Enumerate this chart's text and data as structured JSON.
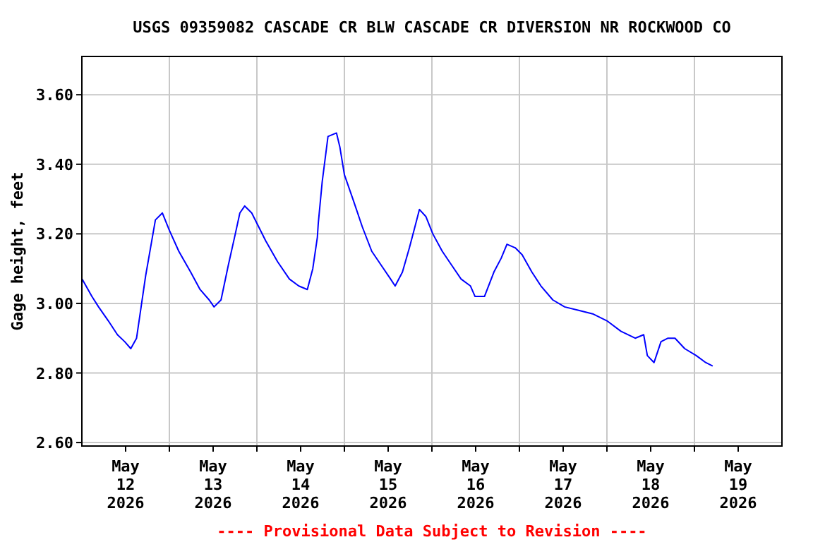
{
  "chart_data": {
    "type": "line",
    "title": "USGS 09359082 CASCADE CR BLW CASCADE CR DIVERSION NR ROCKWOOD CO",
    "ylabel": "Gage height, feet",
    "annotations": [
      "---- Provisional Data Subject to Revision ----"
    ],
    "x": [
      "2026-05-12T00:05",
      "2026-05-12T02:45",
      "2026-05-12T04:35",
      "2026-05-12T07:15",
      "2026-05-12T09:45",
      "2026-05-12T11:45",
      "2026-05-12T13:25",
      "2026-05-12T15:00",
      "2026-05-12T16:15",
      "2026-05-12T17:30",
      "2026-05-12T18:50",
      "2026-05-12T20:10",
      "2026-05-12T22:05",
      "2026-05-13T00:00",
      "2026-05-13T02:35",
      "2026-05-13T05:50",
      "2026-05-13T08:25",
      "2026-05-13T10:55",
      "2026-05-13T12:15",
      "2026-05-13T14:10",
      "2026-05-13T16:10",
      "2026-05-13T18:05",
      "2026-05-13T19:20",
      "2026-05-13T20:40",
      "2026-05-13T22:35",
      "2026-05-14T00:30",
      "2026-05-14T02:25",
      "2026-05-14T05:40",
      "2026-05-14T08:55",
      "2026-05-14T11:30",
      "2026-05-14T13:50",
      "2026-05-14T15:20",
      "2026-05-14T16:35",
      "2026-05-14T16:50",
      "2026-05-14T17:55",
      "2026-05-14T19:30",
      "2026-05-14T21:50",
      "2026-05-14T22:45",
      "2026-05-15T00:00",
      "2026-05-15T02:20",
      "2026-05-15T04:55",
      "2026-05-15T07:30",
      "2026-05-15T10:05",
      "2026-05-15T12:40",
      "2026-05-15T13:55",
      "2026-05-15T15:55",
      "2026-05-15T17:50",
      "2026-05-15T19:05",
      "2026-05-15T20:35",
      "2026-05-15T22:20",
      "2026-05-16T00:15",
      "2026-05-16T02:50",
      "2026-05-16T05:25",
      "2026-05-16T08:00",
      "2026-05-16T10:35",
      "2026-05-16T11:50",
      "2026-05-16T14:25",
      "2026-05-16T17:00",
      "2026-05-16T19:00",
      "2026-05-16T20:35",
      "2026-05-16T22:50",
      "2026-05-17T00:45",
      "2026-05-17T03:25",
      "2026-05-17T05:55",
      "2026-05-17T09:10",
      "2026-05-17T12:25",
      "2026-05-17T16:15",
      "2026-05-17T20:05",
      "2026-05-18T00:00",
      "2026-05-18T03:50",
      "2026-05-18T07:45",
      "2026-05-18T10:05",
      "2026-05-18T11:05",
      "2026-05-18T12:55",
      "2026-05-18T14:50",
      "2026-05-18T16:45",
      "2026-05-18T18:40",
      "2026-05-18T21:20",
      "2026-05-19T00:30",
      "2026-05-19T03:05",
      "2026-05-19T05:00"
    ],
    "series": [
      {
        "color": "#0000ff",
        "values": [
          3.07,
          3.02,
          2.99,
          2.95,
          2.91,
          2.89,
          2.87,
          2.9,
          2.99,
          3.08,
          3.16,
          3.24,
          3.26,
          3.21,
          3.15,
          3.09,
          3.04,
          3.01,
          2.99,
          3.01,
          3.11,
          3.2,
          3.26,
          3.28,
          3.26,
          3.22,
          3.18,
          3.12,
          3.07,
          3.05,
          3.04,
          3.1,
          3.19,
          3.23,
          3.35,
          3.48,
          3.49,
          3.45,
          3.37,
          3.3,
          3.22,
          3.15,
          3.11,
          3.07,
          3.05,
          3.09,
          3.16,
          3.21,
          3.27,
          3.25,
          3.2,
          3.15,
          3.11,
          3.07,
          3.05,
          3.02,
          3.02,
          3.09,
          3.13,
          3.17,
          3.16,
          3.14,
          3.09,
          3.05,
          3.01,
          2.99,
          2.98,
          2.97,
          2.95,
          2.92,
          2.9,
          2.91,
          2.85,
          2.83,
          2.89,
          2.9,
          2.9,
          2.87,
          2.85,
          2.83,
          2.82
        ]
      }
    ],
    "xlim": [
      "2026-05-12T00:00",
      "2026-05-20T00:00"
    ],
    "xticks": [
      {
        "value": "2026-05-12T12:00",
        "label": "May\n12\n2026"
      },
      {
        "value": "2026-05-13T00:00",
        "label": null
      },
      {
        "value": "2026-05-13T12:00",
        "label": "May\n13\n2026"
      },
      {
        "value": "2026-05-14T00:00",
        "label": null
      },
      {
        "value": "2026-05-14T12:00",
        "label": "May\n14\n2026"
      },
      {
        "value": "2026-05-15T00:00",
        "label": null
      },
      {
        "value": "2026-05-15T12:00",
        "label": "May\n15\n2026"
      },
      {
        "value": "2026-05-16T00:00",
        "label": null
      },
      {
        "value": "2026-05-16T12:00",
        "label": "May\n16\n2026"
      },
      {
        "value": "2026-05-17T00:00",
        "label": null
      },
      {
        "value": "2026-05-17T12:00",
        "label": "May\n17\n2026"
      },
      {
        "value": "2026-05-18T00:00",
        "label": null
      },
      {
        "value": "2026-05-18T12:00",
        "label": "May\n18\n2026"
      },
      {
        "value": "2026-05-19T00:00",
        "label": null
      },
      {
        "value": "2026-05-19T12:00",
        "label": "May\n19\n2026"
      }
    ],
    "ylim": [
      2.59,
      3.71
    ],
    "yticks": [
      {
        "value": 2.6,
        "label": "2.60"
      },
      {
        "value": 2.8,
        "label": "2.80"
      },
      {
        "value": 3.0,
        "label": "3.00"
      },
      {
        "value": 3.2,
        "label": "3.20"
      },
      {
        "value": 3.4,
        "label": "3.40"
      },
      {
        "value": 3.6,
        "label": "3.60"
      }
    ],
    "grid": true,
    "marker": "none",
    "line_style": "solid"
  }
}
